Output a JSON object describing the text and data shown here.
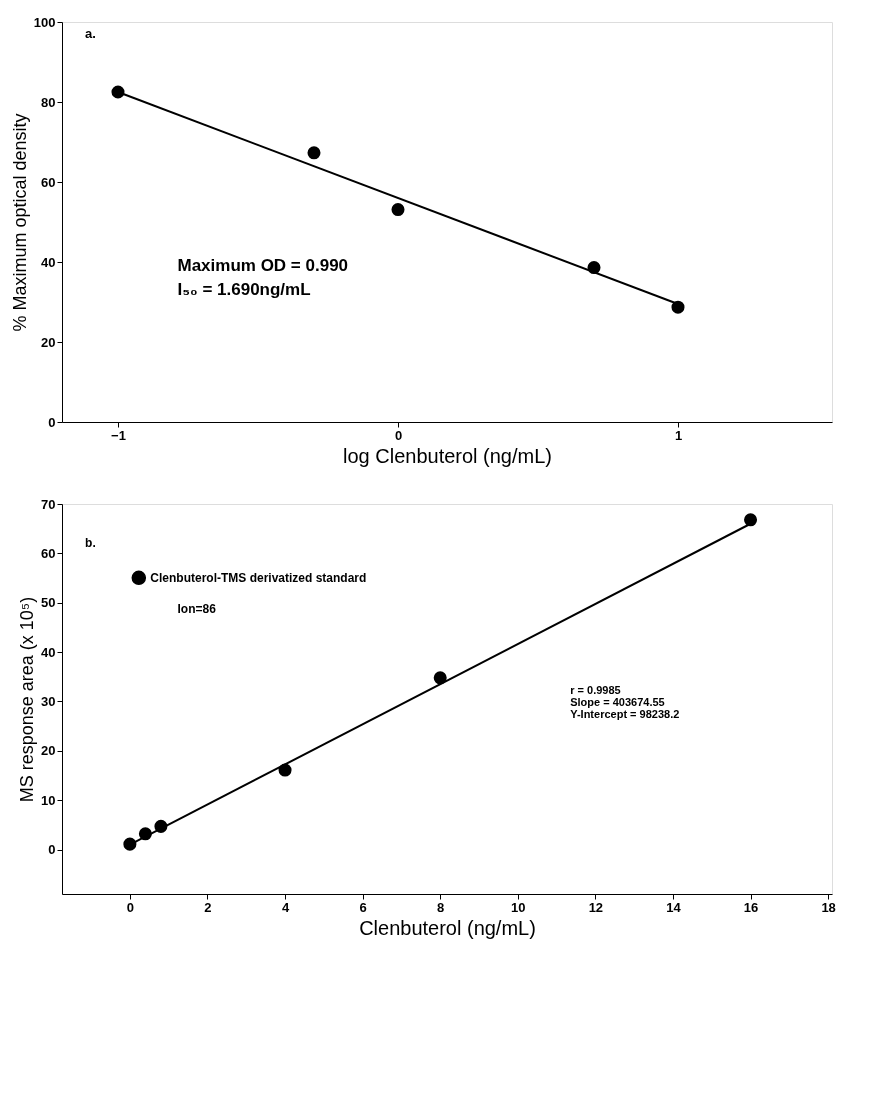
{
  "chart_data": [
    {
      "type": "scatter",
      "xlabel": "log Clenbuterol (ng/mL)",
      "ylabel": "% Maximum optical density",
      "xlim": [
        -1.2,
        1.55
      ],
      "xticks": [
        -1,
        0,
        1
      ],
      "ylim": [
        0,
        100
      ],
      "yticks": [
        0,
        20,
        40,
        60,
        80,
        100
      ],
      "grid": false,
      "legend": false,
      "marker": "circle",
      "series": [
        {
          "color": "#000000",
          "x": [
            -1,
            -0.3,
            0,
            0.7,
            1
          ],
          "values": [
            82.5,
            67.3,
            53.1,
            38.6,
            28.7
          ]
        },
        {
          "type": "line",
          "color": "#000000",
          "marker": "none",
          "line_style": "solid",
          "x": [
            -1,
            1
          ],
          "values": [
            82.5,
            29.5
          ]
        }
      ],
      "annotations": [
        "a.",
        "Maximum OD = 0.990",
        "I₅₀ =   1.690ng/mL"
      ]
    },
    {
      "type": "scatter",
      "xlabel": "Clenbuterol (ng/mL)",
      "ylabel": "MS response area (x 10⁵)",
      "xlim": [
        -1.75,
        18.1
      ],
      "xticks": [
        0,
        2,
        4,
        6,
        8,
        10,
        12,
        14,
        16,
        18
      ],
      "ylim": [
        -9,
        70
      ],
      "yticks": [
        0,
        10,
        20,
        30,
        40,
        50,
        60,
        70
      ],
      "grid": false,
      "legend": "top left",
      "marker": "circle",
      "series": [
        {
          "name": "Clenbuterol-TMS derivatized standard",
          "color": "#000000",
          "x": [
            0,
            0.4,
            0.8,
            4,
            8,
            16
          ],
          "values": [
            1.1,
            3.2,
            4.7,
            16.1,
            34.8,
            66.8
          ]
        },
        {
          "type": "line",
          "color": "#000000",
          "marker": "none",
          "line_style": "solid",
          "x": [
            0,
            16
          ],
          "values": [
            1.0,
            66.0
          ]
        }
      ],
      "annotations": [
        "b.",
        "Ion=86",
        "r = 0.9985",
        "Slope = 403674.55",
        "Y-Intercept = 98238.2"
      ]
    }
  ]
}
